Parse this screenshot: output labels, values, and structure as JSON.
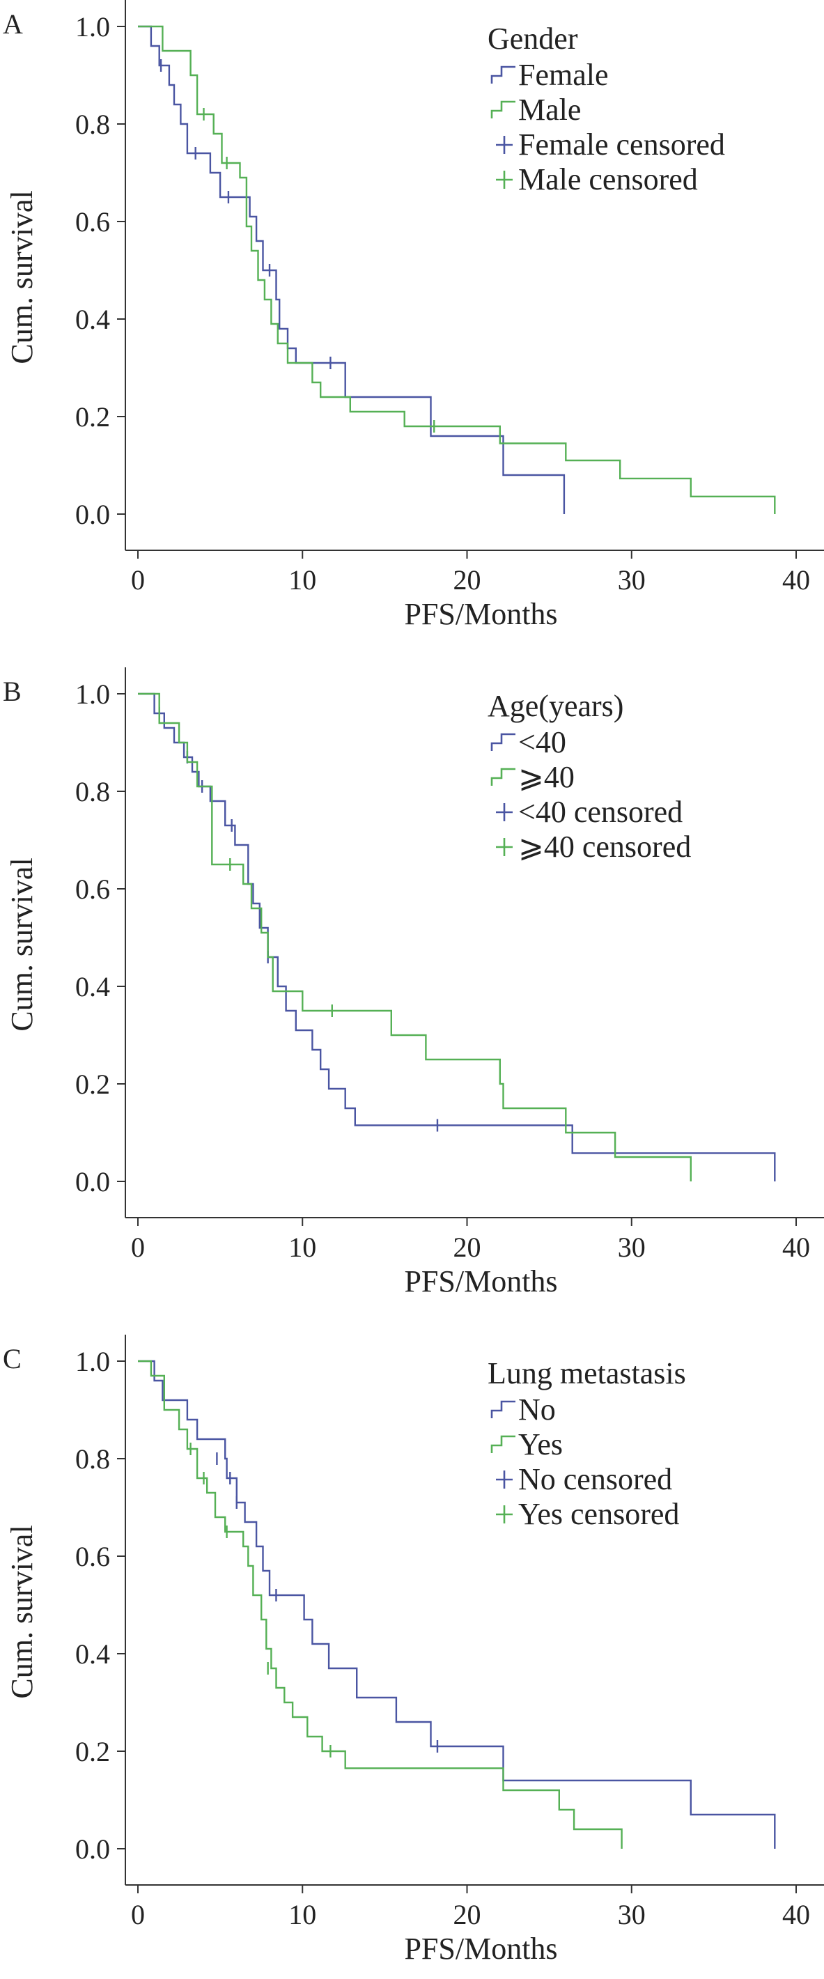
{
  "chart_data": [
    {
      "type": "line",
      "panel": "A",
      "xlabel": "PFS/Months",
      "ylabel": "Cum. survival",
      "xlim": [
        0,
        40
      ],
      "ylim": [
        0,
        1
      ],
      "x_ticks": [
        0,
        10,
        20,
        30,
        40
      ],
      "y_ticks": [
        "0.0",
        "0.2",
        "0.4",
        "0.6",
        "0.8",
        "1.0"
      ],
      "legend_title": "Gender",
      "legend_position": "top-right",
      "legend": [
        "Female",
        "Male",
        "Female censored",
        "Male censored"
      ],
      "series": [
        {
          "name": "Female",
          "color": "#4a55a2",
          "steps": [
            [
              0,
              1.0
            ],
            [
              0.8,
              0.96
            ],
            [
              1.3,
              0.92
            ],
            [
              1.9,
              0.88
            ],
            [
              2.2,
              0.84
            ],
            [
              2.6,
              0.8
            ],
            [
              3.0,
              0.74
            ],
            [
              4.4,
              0.7
            ],
            [
              5.0,
              0.65
            ],
            [
              6.8,
              0.61
            ],
            [
              7.2,
              0.56
            ],
            [
              7.6,
              0.5
            ],
            [
              8.4,
              0.44
            ],
            [
              8.6,
              0.38
            ],
            [
              9.1,
              0.34
            ],
            [
              9.6,
              0.31
            ],
            [
              12.6,
              0.24
            ],
            [
              17.8,
              0.16
            ],
            [
              22.2,
              0.08
            ],
            [
              25.9,
              0.0
            ]
          ],
          "end": 25.9,
          "censored": [
            [
              1.4,
              0.92
            ],
            [
              3.5,
              0.74
            ],
            [
              5.5,
              0.65
            ],
            [
              8.0,
              0.5
            ],
            [
              11.7,
              0.31
            ]
          ]
        },
        {
          "name": "Male",
          "color": "#55b055",
          "steps": [
            [
              0,
              1.0
            ],
            [
              1.5,
              0.95
            ],
            [
              3.2,
              0.9
            ],
            [
              3.6,
              0.82
            ],
            [
              4.6,
              0.78
            ],
            [
              5.1,
              0.72
            ],
            [
              6.2,
              0.69
            ],
            [
              6.6,
              0.59
            ],
            [
              6.9,
              0.54
            ],
            [
              7.3,
              0.48
            ],
            [
              7.7,
              0.44
            ],
            [
              8.1,
              0.39
            ],
            [
              8.5,
              0.35
            ],
            [
              9.1,
              0.31
            ],
            [
              10.6,
              0.27
            ],
            [
              11.1,
              0.24
            ],
            [
              12.9,
              0.21
            ],
            [
              16.2,
              0.18
            ],
            [
              22.0,
              0.145
            ],
            [
              26.0,
              0.11
            ],
            [
              29.3,
              0.073
            ],
            [
              33.6,
              0.036
            ],
            [
              38.7,
              0.0
            ]
          ],
          "end": 38.7,
          "censored": [
            [
              4.0,
              0.82
            ],
            [
              5.4,
              0.72
            ],
            [
              18.0,
              0.18
            ]
          ]
        }
      ]
    },
    {
      "type": "line",
      "panel": "B",
      "xlabel": "PFS/Months",
      "ylabel": "Cum. survival",
      "xlim": [
        0,
        40
      ],
      "ylim": [
        0,
        1
      ],
      "x_ticks": [
        0,
        10,
        20,
        30,
        40
      ],
      "y_ticks": [
        "0.0",
        "0.2",
        "0.4",
        "0.6",
        "0.8",
        "1.0"
      ],
      "legend_title": "Age(years)",
      "legend_position": "top-right",
      "legend": [
        "<40",
        "⩾40",
        "<40 censored",
        "⩾40 censored"
      ],
      "series": [
        {
          "name": "<40",
          "color": "#4a55a2",
          "steps": [
            [
              0,
              1.0
            ],
            [
              1.0,
              0.96
            ],
            [
              1.6,
              0.93
            ],
            [
              2.2,
              0.9
            ],
            [
              2.8,
              0.87
            ],
            [
              3.3,
              0.84
            ],
            [
              3.7,
              0.81
            ],
            [
              4.4,
              0.78
            ],
            [
              5.3,
              0.73
            ],
            [
              5.9,
              0.69
            ],
            [
              6.7,
              0.61
            ],
            [
              7.0,
              0.57
            ],
            [
              7.4,
              0.52
            ],
            [
              7.9,
              0.46
            ],
            [
              8.5,
              0.4
            ],
            [
              9.0,
              0.35
            ],
            [
              9.6,
              0.31
            ],
            [
              10.6,
              0.27
            ],
            [
              11.1,
              0.23
            ],
            [
              11.6,
              0.19
            ],
            [
              12.6,
              0.15
            ],
            [
              13.2,
              0.115
            ],
            [
              26.4,
              0.058
            ],
            [
              38.7,
              0.0
            ]
          ],
          "end": 38.7,
          "censored": [
            [
              1.3,
              0.96
            ],
            [
              3.0,
              0.87
            ],
            [
              3.9,
              0.81
            ],
            [
              5.7,
              0.73
            ],
            [
              7.9,
              0.46
            ],
            [
              18.2,
              0.115
            ]
          ]
        },
        {
          "name": "⩾40",
          "color": "#55b055",
          "steps": [
            [
              0,
              1.0
            ],
            [
              1.3,
              0.94
            ],
            [
              2.5,
              0.9
            ],
            [
              3.0,
              0.86
            ],
            [
              3.6,
              0.81
            ],
            [
              4.5,
              0.65
            ],
            [
              6.4,
              0.61
            ],
            [
              6.9,
              0.56
            ],
            [
              7.5,
              0.51
            ],
            [
              7.9,
              0.46
            ],
            [
              8.2,
              0.39
            ],
            [
              10.0,
              0.35
            ],
            [
              15.4,
              0.3
            ],
            [
              17.5,
              0.25
            ],
            [
              22.0,
              0.2
            ],
            [
              22.2,
              0.15
            ],
            [
              26.0,
              0.1
            ],
            [
              29.0,
              0.05
            ],
            [
              33.6,
              0.0
            ]
          ],
          "end": 33.6,
          "censored": [
            [
              5.6,
              0.65
            ],
            [
              11.8,
              0.35
            ]
          ]
        }
      ]
    },
    {
      "type": "line",
      "panel": "C",
      "xlabel": "PFS/Months",
      "ylabel": "Cum. survival",
      "xlim": [
        0,
        40
      ],
      "ylim": [
        0,
        1
      ],
      "x_ticks": [
        0,
        10,
        20,
        30,
        40
      ],
      "y_ticks": [
        "0.0",
        "0.2",
        "0.4",
        "0.6",
        "0.8",
        "1.0"
      ],
      "legend_title": "Lung metastasis",
      "legend_position": "top-right",
      "legend": [
        "No",
        "Yes",
        "No censored",
        "Yes censored"
      ],
      "series": [
        {
          "name": "No",
          "color": "#4a55a2",
          "steps": [
            [
              0,
              1.0
            ],
            [
              1.0,
              0.96
            ],
            [
              1.5,
              0.92
            ],
            [
              3.0,
              0.88
            ],
            [
              3.6,
              0.84
            ],
            [
              5.3,
              0.8
            ],
            [
              5.4,
              0.76
            ],
            [
              6.0,
              0.71
            ],
            [
              6.5,
              0.67
            ],
            [
              7.2,
              0.62
            ],
            [
              7.6,
              0.57
            ],
            [
              8.0,
              0.52
            ],
            [
              10.1,
              0.47
            ],
            [
              10.6,
              0.42
            ],
            [
              11.6,
              0.37
            ],
            [
              13.3,
              0.31
            ],
            [
              15.7,
              0.26
            ],
            [
              17.8,
              0.21
            ],
            [
              22.2,
              0.14
            ],
            [
              33.6,
              0.07
            ],
            [
              38.7,
              0.0
            ]
          ],
          "end": 38.7,
          "censored": [
            [
              4.8,
              0.8
            ],
            [
              5.6,
              0.76
            ],
            [
              6.0,
              0.71
            ],
            [
              8.4,
              0.52
            ],
            [
              18.2,
              0.21
            ]
          ]
        },
        {
          "name": "Yes",
          "color": "#55b055",
          "steps": [
            [
              0,
              1.0
            ],
            [
              0.8,
              0.97
            ],
            [
              1.6,
              0.9
            ],
            [
              2.5,
              0.86
            ],
            [
              3.0,
              0.82
            ],
            [
              3.6,
              0.76
            ],
            [
              4.2,
              0.73
            ],
            [
              4.7,
              0.68
            ],
            [
              5.3,
              0.65
            ],
            [
              6.4,
              0.62
            ],
            [
              6.7,
              0.58
            ],
            [
              7.0,
              0.52
            ],
            [
              7.5,
              0.47
            ],
            [
              7.8,
              0.41
            ],
            [
              8.1,
              0.37
            ],
            [
              8.4,
              0.33
            ],
            [
              8.9,
              0.3
            ],
            [
              9.4,
              0.27
            ],
            [
              10.3,
              0.23
            ],
            [
              11.2,
              0.2
            ],
            [
              12.6,
              0.165
            ],
            [
              22.2,
              0.12
            ],
            [
              25.6,
              0.08
            ],
            [
              26.5,
              0.04
            ],
            [
              29.4,
              0.0
            ]
          ],
          "end": 29.4,
          "censored": [
            [
              3.2,
              0.82
            ],
            [
              4.0,
              0.76
            ],
            [
              5.4,
              0.65
            ],
            [
              7.9,
              0.37
            ],
            [
              11.7,
              0.2
            ]
          ]
        }
      ]
    }
  ]
}
